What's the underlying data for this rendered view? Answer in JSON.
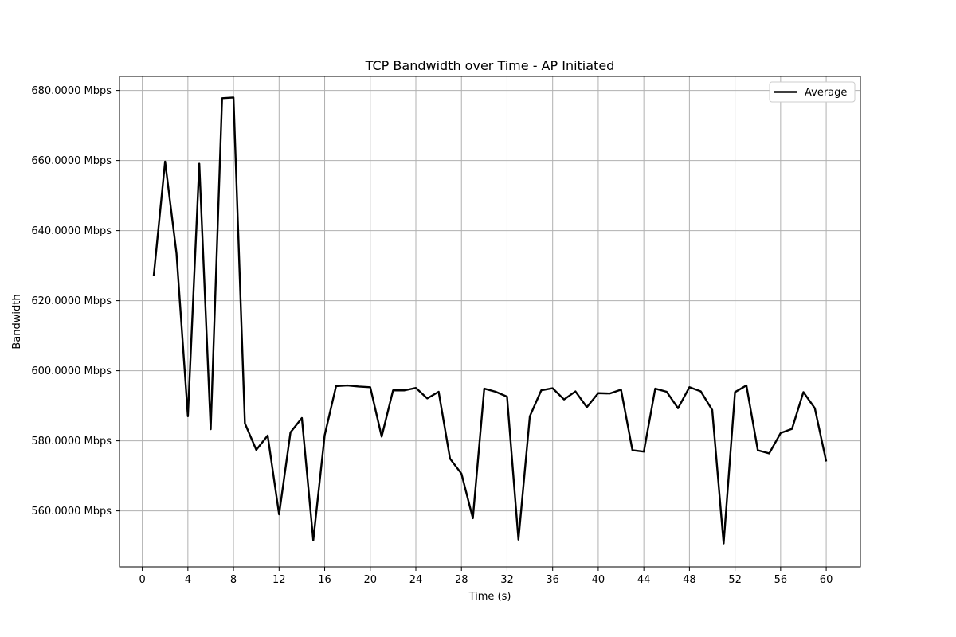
{
  "chart_data": {
    "type": "line",
    "title": "TCP Bandwidth over Time - AP Initiated",
    "xlabel": "Time (s)",
    "ylabel": "Bandwidth",
    "xlim": [
      -2,
      63
    ],
    "ylim": [
      544,
      684
    ],
    "xticks": [
      0,
      4,
      8,
      12,
      16,
      20,
      24,
      28,
      32,
      36,
      40,
      44,
      48,
      52,
      56,
      60
    ],
    "yticks": [
      560,
      580,
      600,
      620,
      640,
      660,
      680
    ],
    "ytick_labels": [
      "560.0000 Mbps",
      "580.0000 Mbps",
      "600.0000 Mbps",
      "620.0000 Mbps",
      "640.0000 Mbps",
      "660.0000 Mbps",
      "680.0000 Mbps"
    ],
    "grid": true,
    "legend_position": "top-right",
    "series": [
      {
        "name": "Average",
        "color": "#000000",
        "x": [
          1,
          2,
          3,
          4,
          5,
          6,
          7,
          8,
          9,
          10,
          11,
          12,
          13,
          14,
          15,
          16,
          17,
          18,
          19,
          20,
          21,
          22,
          23,
          24,
          25,
          26,
          27,
          28,
          29,
          30,
          31,
          32,
          33,
          34,
          35,
          36,
          37,
          38,
          39,
          40,
          41,
          42,
          43,
          44,
          45,
          46,
          47,
          48,
          49,
          50,
          51,
          52,
          53,
          54,
          55,
          56,
          57,
          58,
          59,
          60
        ],
        "y": [
          627.0,
          659.7,
          633.5,
          587.0,
          659.1,
          583.3,
          677.8,
          678.0,
          585.0,
          577.4,
          581.5,
          559.0,
          582.4,
          586.5,
          551.6,
          581.6,
          595.6,
          595.8,
          595.5,
          595.3,
          581.2,
          594.4,
          594.4,
          595.1,
          592.1,
          594.0,
          574.9,
          570.6,
          557.9,
          594.9,
          594.0,
          592.6,
          551.8,
          587.0,
          594.4,
          595.0,
          591.8,
          594.1,
          589.6,
          593.6,
          593.5,
          594.6,
          577.3,
          576.9,
          594.9,
          594.0,
          589.3,
          595.3,
          594.1,
          588.8,
          550.7,
          593.9,
          595.8,
          577.3,
          576.4,
          582.2,
          583.4,
          593.9,
          589.3,
          574.1
        ]
      }
    ]
  }
}
